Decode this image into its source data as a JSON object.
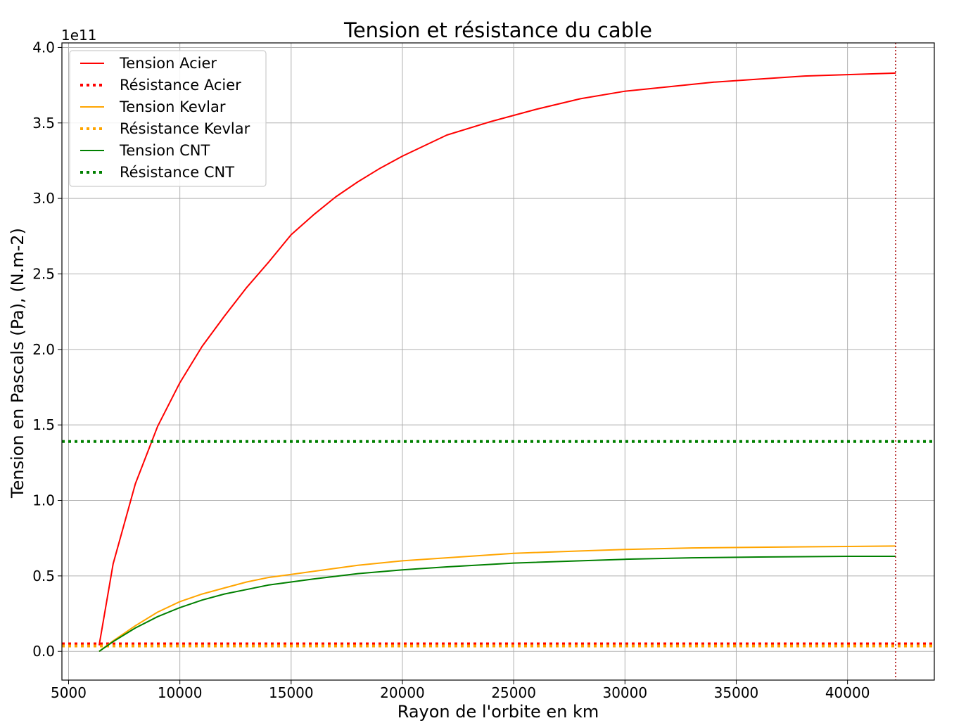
{
  "chart_data": {
    "type": "line",
    "title": "Tension et résistance du cable",
    "xlabel": "Rayon de l'orbite en km",
    "ylabel": "Tension en Pascals (Pa), (N.m-2)",
    "y_offset_label": "1e11",
    "xlim": [
      4700,
      43900
    ],
    "ylim": [
      -0.19,
      4.03
    ],
    "x_ticks": [
      5000,
      10000,
      15000,
      20000,
      25000,
      30000,
      35000,
      40000
    ],
    "x_tick_labels": [
      "5000",
      "10000",
      "15000",
      "20000",
      "25000",
      "30000",
      "35000",
      "40000"
    ],
    "y_ticks": [
      0.0,
      0.5,
      1.0,
      1.5,
      2.0,
      2.5,
      3.0,
      3.5,
      4.0
    ],
    "y_tick_labels": [
      "0.0",
      "0.5",
      "1.0",
      "1.5",
      "2.0",
      "2.5",
      "3.0",
      "3.5",
      "4.0"
    ],
    "grid": true,
    "legend_position": "top-left",
    "vertical_line": {
      "x": 42164,
      "color": "#b22222",
      "style": "dotted"
    },
    "series": [
      {
        "name": "Tension Acier",
        "kind": "line",
        "color": "#ff0000",
        "style": "solid",
        "x": [
          6371,
          7000,
          8000,
          9000,
          10000,
          11000,
          12000,
          13000,
          14000,
          15000,
          16000,
          17000,
          18000,
          19000,
          20000,
          22000,
          24000,
          26000,
          28000,
          30000,
          32000,
          34000,
          36000,
          38000,
          40000,
          42164
        ],
        "y": [
          0.04,
          0.58,
          1.11,
          1.49,
          1.78,
          2.02,
          2.22,
          2.41,
          2.58,
          2.76,
          2.89,
          3.01,
          3.11,
          3.2,
          3.28,
          3.42,
          3.51,
          3.59,
          3.66,
          3.71,
          3.74,
          3.77,
          3.79,
          3.81,
          3.82,
          3.83
        ]
      },
      {
        "name": "Résistance Acier",
        "kind": "hline",
        "color": "#ff0000",
        "style": "dotted",
        "y": 0.05
      },
      {
        "name": "Tension Kevlar",
        "kind": "line",
        "color": "#ffa500",
        "style": "solid",
        "x": [
          6371,
          7000,
          8000,
          9000,
          10000,
          11000,
          12000,
          13000,
          14000,
          15000,
          16000,
          18000,
          20000,
          22000,
          25000,
          28000,
          30000,
          33000,
          36000,
          40000,
          42164
        ],
        "y": [
          0.0,
          0.07,
          0.17,
          0.26,
          0.33,
          0.38,
          0.42,
          0.46,
          0.49,
          0.51,
          0.53,
          0.57,
          0.6,
          0.62,
          0.65,
          0.665,
          0.675,
          0.685,
          0.69,
          0.695,
          0.698
        ]
      },
      {
        "name": "Résistance Kevlar",
        "kind": "hline",
        "color": "#ffa500",
        "style": "dotted",
        "y": 0.036
      },
      {
        "name": "Tension CNT",
        "kind": "line",
        "color": "#008000",
        "style": "solid",
        "x": [
          6371,
          7000,
          8000,
          9000,
          10000,
          11000,
          12000,
          13000,
          14000,
          15000,
          16000,
          18000,
          20000,
          22000,
          25000,
          28000,
          30000,
          33000,
          36000,
          40000,
          42164
        ],
        "y": [
          0.0,
          0.065,
          0.155,
          0.23,
          0.29,
          0.34,
          0.38,
          0.41,
          0.44,
          0.46,
          0.48,
          0.515,
          0.54,
          0.56,
          0.585,
          0.6,
          0.61,
          0.62,
          0.625,
          0.63,
          0.63
        ]
      },
      {
        "name": "Résistance CNT",
        "kind": "hline",
        "color": "#008000",
        "style": "dotted",
        "y": 1.39
      }
    ]
  }
}
